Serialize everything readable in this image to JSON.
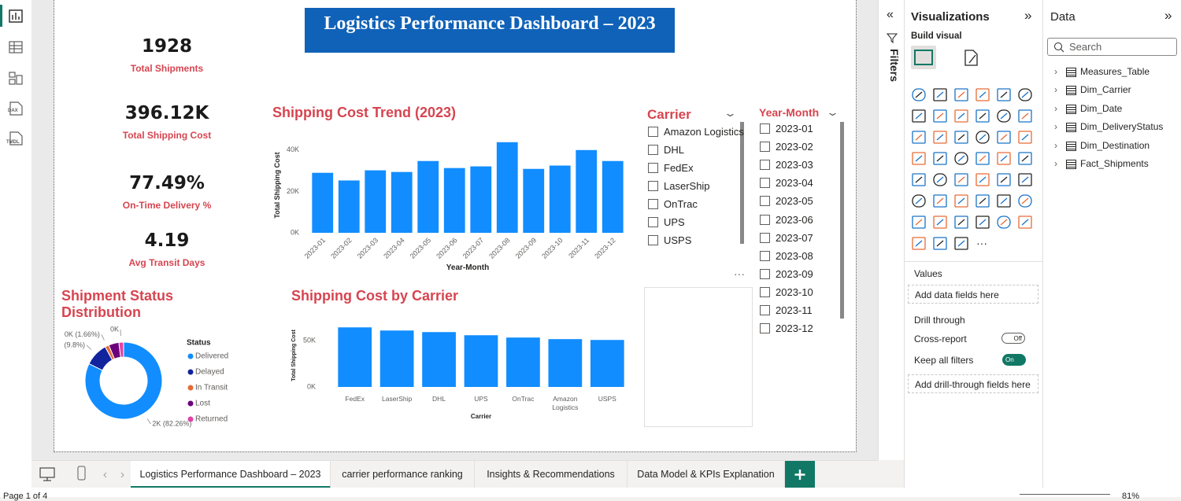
{
  "report": {
    "title": "Logistics Performance Dashboard – 2023",
    "kpis": [
      {
        "value": "1928",
        "label": "Total Shipments"
      },
      {
        "value": "396.12K",
        "label": "Total Shipping Cost"
      },
      {
        "value": "77.49%",
        "label": "On-Time Delivery %"
      },
      {
        "value": "4.19",
        "label": "Avg Transit Days"
      }
    ]
  },
  "chart_data": [
    {
      "type": "bar",
      "title": "Shipping Cost Trend (2023)",
      "x_label": "Year-Month",
      "y_label": "Total Shipping Cost",
      "categories": [
        "2023-01",
        "2023-02",
        "2023-03",
        "2023-04",
        "2023-05",
        "2023-06",
        "2023-07",
        "2023-08",
        "2023-09",
        "2023-10",
        "2023-11",
        "2023-12"
      ],
      "values": [
        29000,
        25300,
        30200,
        29400,
        34700,
        31300,
        32100,
        43800,
        30900,
        32500,
        40000,
        34700
      ],
      "color": "#118DFF",
      "ylim": [
        0,
        46000
      ],
      "yticks": [
        {
          "value": 0,
          "label": "0K"
        },
        {
          "value": 20000,
          "label": "20K"
        },
        {
          "value": 40000,
          "label": "40K"
        }
      ],
      "grid": false
    },
    {
      "type": "bar",
      "title": "Shipping Cost by Carrier",
      "x_label": "Carrier",
      "y_label": "Total Shipping Cost",
      "categories": [
        "FedEx",
        "LaserShip",
        "DHL",
        "UPS",
        "OnTrac",
        "Amazon Logistics",
        "USPS"
      ],
      "values": [
        64400,
        61000,
        59300,
        55900,
        53400,
        51700,
        50800
      ],
      "color": "#118DFF",
      "ylim": [
        0,
        68000
      ],
      "yticks": [
        {
          "value": 0,
          "label": "0K"
        },
        {
          "value": 50000,
          "label": "50K"
        }
      ],
      "grid": false
    },
    {
      "type": "donut",
      "title": "Shipment Status Distribution",
      "legend_title": "Status",
      "categories": [
        "Delivered",
        "Delayed",
        "In Transit",
        "Lost",
        "Returned"
      ],
      "values": [
        82.26,
        9.8,
        1.66,
        4.3,
        1.98
      ],
      "value_labels": [
        "2K (82.26%)",
        "(9.8%)",
        "0K (1.66%)",
        null,
        "0K"
      ],
      "colors": [
        "#118DFF",
        "#12239E",
        "#E66C37",
        "#6B007B",
        "#E044A7"
      ]
    }
  ],
  "slicers": [
    {
      "title": "Carrier",
      "items": [
        "Amazon Logistics",
        "DHL",
        "FedEx",
        "LaserShip",
        "OnTrac",
        "UPS",
        "USPS"
      ]
    },
    {
      "title": "Year-Month",
      "items": [
        "2023-01",
        "2023-02",
        "2023-03",
        "2023-04",
        "2023-05",
        "2023-06",
        "2023-07",
        "2023-08",
        "2023-09",
        "2023-10",
        "2023-11",
        "2023-12"
      ]
    }
  ],
  "left_rail": {
    "dax": "DAX",
    "tmdl": "TMDL"
  },
  "filters": {
    "title": "Filters"
  },
  "visualizations": {
    "title": "Visualizations",
    "build_visual": "Build visual",
    "values": "Values",
    "add_data": "Add data fields here",
    "drill_through": "Drill through",
    "cross_report": "Cross-report",
    "cross_report_state": "Off",
    "keep_filters": "Keep all filters",
    "keep_filters_state": "On",
    "add_drill": "Add drill-through fields here"
  },
  "data_pane": {
    "title": "Data",
    "search": "Search",
    "tables": [
      "Measures_Table",
      "Dim_Carrier",
      "Dim_Date",
      "Dim_DeliveryStatus",
      "Dim_Destination",
      "Fact_Shipments"
    ]
  },
  "tabs": [
    "Logistics Performance Dashboard – 2023",
    "carrier performance ranking",
    "Insights & Recommendations",
    "Data Model & KPIs Explanation"
  ],
  "status": {
    "page": "Page 1 of 4",
    "zoom": "81%"
  }
}
